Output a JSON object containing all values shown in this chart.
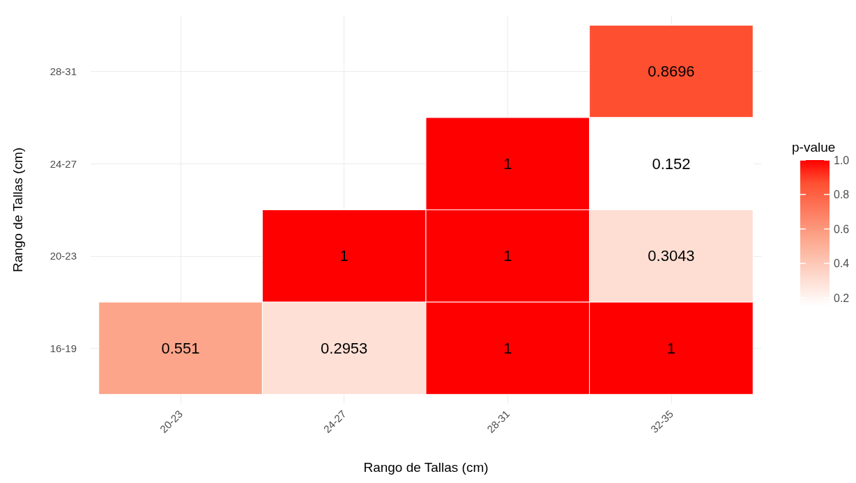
{
  "chart_data": {
    "type": "heatmap",
    "xlabel": "Rango de Tallas (cm)",
    "ylabel": "Rango de Tallas (cm)",
    "clabel": "p-value",
    "categories": [
      "20-23",
      "24-27",
      "28-31",
      "32-35"
    ],
    "y_categories": [
      "28-31",
      "24-27",
      "20-23",
      "16-19"
    ],
    "cells": [
      [
        null,
        null,
        null,
        0.8696
      ],
      [
        null,
        null,
        1,
        0.152
      ],
      [
        null,
        1,
        1,
        0.3043
      ],
      [
        0.551,
        0.2953,
        1,
        1
      ]
    ],
    "clim": [
      0.152,
      1
    ],
    "cticks": [
      {
        "value": 0.2,
        "label": "0.2"
      },
      {
        "value": 0.4,
        "label": "0.4"
      },
      {
        "value": 0.6,
        "label": "0.6"
      },
      {
        "value": 0.8,
        "label": "0.8"
      },
      {
        "value": 1,
        "label": "1.0"
      }
    ],
    "data_labels": true,
    "grid": true
  }
}
